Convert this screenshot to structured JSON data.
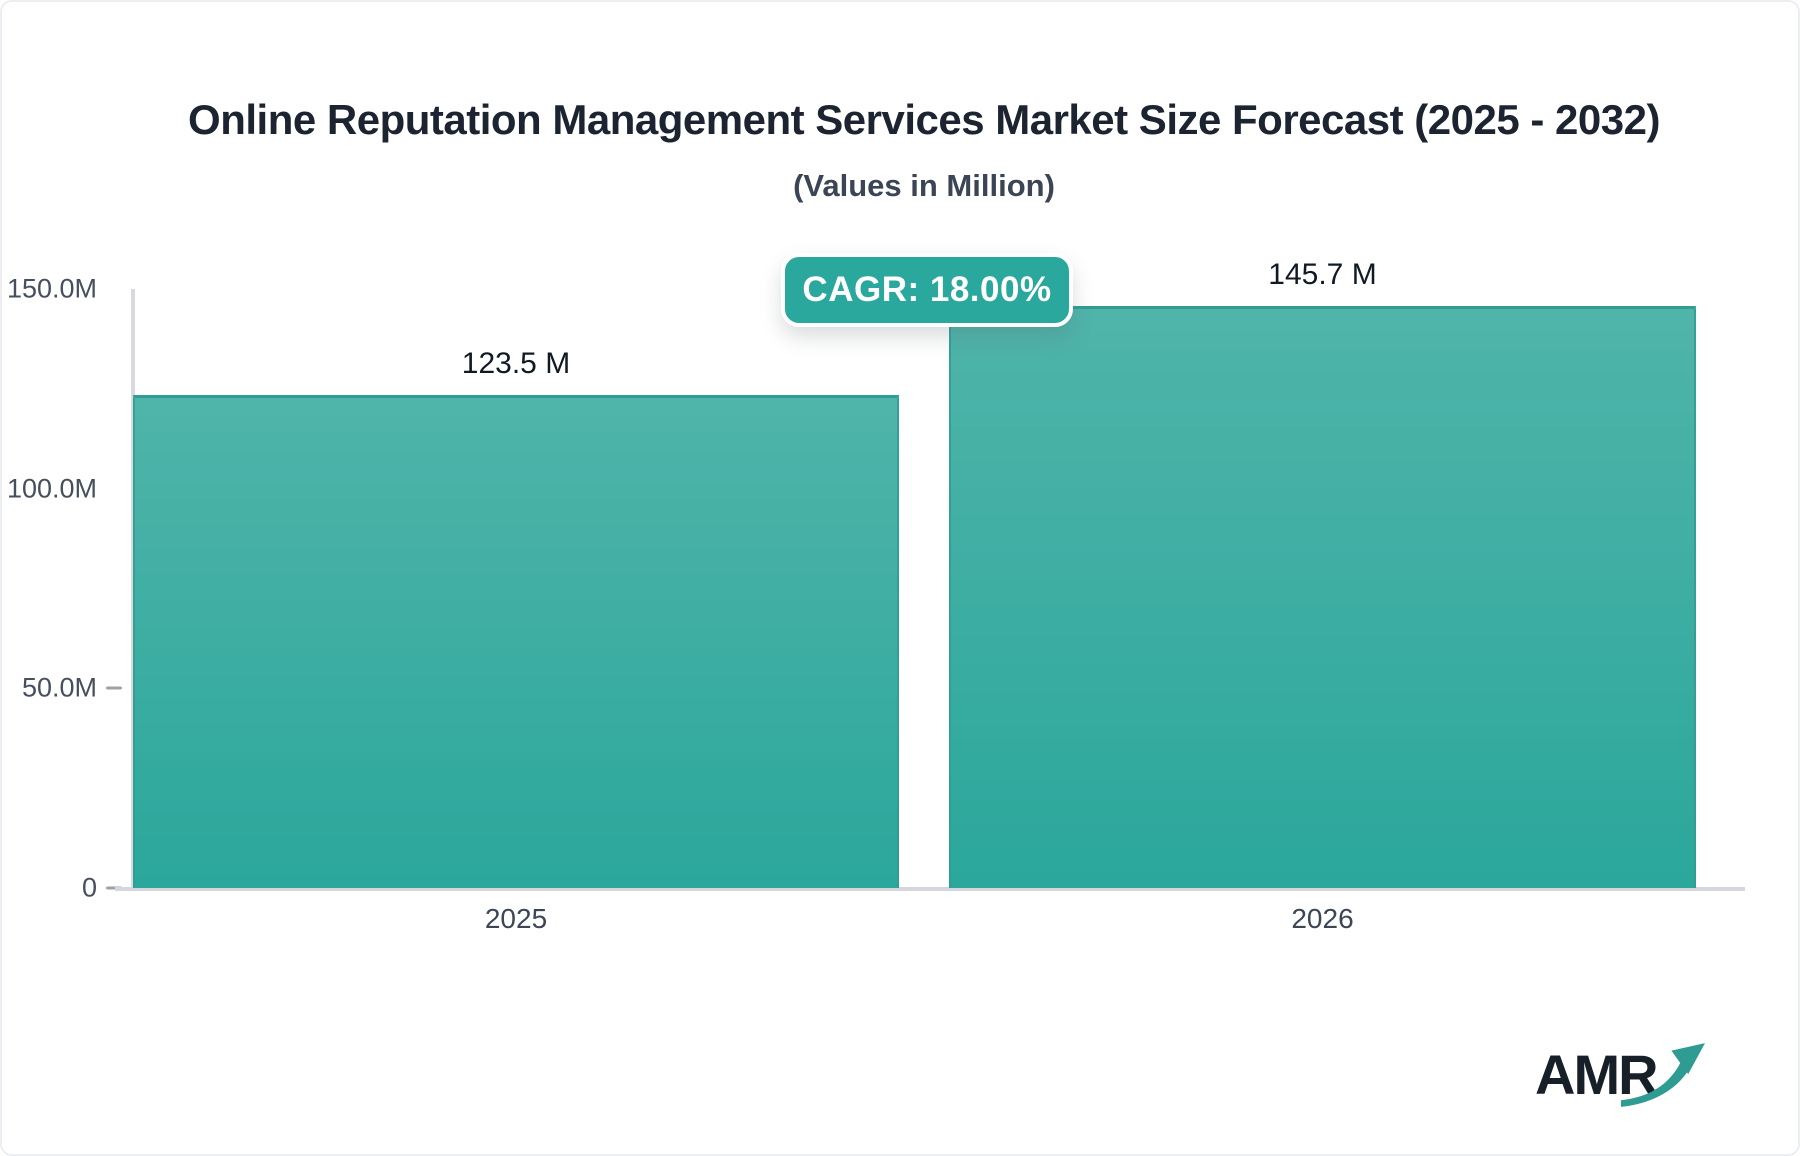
{
  "header": {
    "title": "Online Reputation Management Services Market Size Forecast (2025 - 2032)",
    "subtitle": "(Values in Million)"
  },
  "badge": {
    "label": "CAGR: 18.00%"
  },
  "logo": {
    "text": "AMR",
    "arrow_icon": "growth-arrow-icon"
  },
  "colors": {
    "bar_top": "#50B4AA",
    "bar_bottom": "#2BA79B",
    "bar_border": "#2F9D93",
    "badge_bg": "#2BA89D",
    "axis_line": "#D8DADE",
    "logo_arrow": "#2E9C92"
  },
  "chart_data": {
    "type": "bar",
    "title": "Online Reputation Management Services Market Size Forecast (2025 - 2032)",
    "subtitle": "(Values in Million)",
    "categories": [
      "2025",
      "2026"
    ],
    "values": [
      123.5,
      145.7
    ],
    "value_labels": [
      "123.5 M",
      "145.7 M"
    ],
    "unit": "Million",
    "xlabel": "",
    "ylabel": "",
    "ylim": [
      0,
      150
    ],
    "yticks": [
      {
        "value": 150,
        "label": "150.0M"
      },
      {
        "value": 100,
        "label": "100.0M"
      },
      {
        "value": 50,
        "label": "50.0M"
      },
      {
        "value": 0,
        "label": "0"
      }
    ],
    "annotations": [
      "CAGR: 18.00%"
    ],
    "grid": false,
    "legend": false
  }
}
